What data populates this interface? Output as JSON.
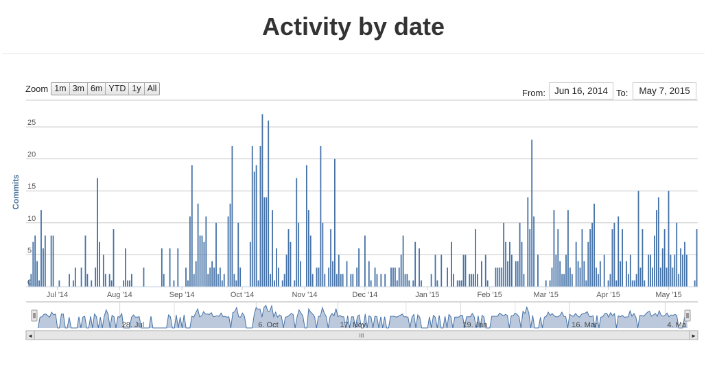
{
  "page": {
    "title": "Activity by date"
  },
  "zoom": {
    "label": "Zoom",
    "buttons": [
      "1m",
      "3m",
      "6m",
      "YTD",
      "1y",
      "All"
    ]
  },
  "range": {
    "from_label": "From:",
    "from_value": "Jun 16, 2014",
    "to_label": "To:",
    "to_value": "May 7, 2015"
  },
  "chart_data": {
    "type": "bar",
    "ylabel": "Commits",
    "ylim": [
      0,
      27
    ],
    "y_ticks": [
      "0",
      "5",
      "10",
      "15",
      "20",
      "25"
    ],
    "y_tick_values": [
      0,
      5,
      10,
      15,
      20,
      25
    ],
    "x_range": [
      "2014-06-16",
      "2015-05-07"
    ],
    "x_tick_labels": [
      "Jul '14",
      "Aug '14",
      "Sep '14",
      "Oct '14",
      "Nov '14",
      "Dec '14",
      "Jan '15",
      "Feb '15",
      "Mar '15",
      "Apr '15",
      "May '15"
    ],
    "x_tick_dates": [
      "2014-07-01",
      "2014-08-01",
      "2014-09-01",
      "2014-10-01",
      "2014-11-01",
      "2014-12-01",
      "2015-01-01",
      "2015-02-01",
      "2015-03-01",
      "2015-04-01",
      "2015-05-01"
    ],
    "grid": true,
    "color": "#4572a7",
    "series": [
      {
        "values": [
          [
            "2014-06-17",
            1
          ],
          [
            "2014-06-18",
            2
          ],
          [
            "2014-06-19",
            7
          ],
          [
            "2014-06-20",
            8
          ],
          [
            "2014-06-21",
            4
          ],
          [
            "2014-06-22",
            1
          ],
          [
            "2014-06-23",
            12
          ],
          [
            "2014-06-24",
            6
          ],
          [
            "2014-06-25",
            8
          ],
          [
            "2014-06-28",
            8
          ],
          [
            "2014-06-29",
            8
          ],
          [
            "2014-07-02",
            1
          ],
          [
            "2014-07-07",
            2
          ],
          [
            "2014-07-09",
            1
          ],
          [
            "2014-07-10",
            3
          ],
          [
            "2014-07-13",
            3
          ],
          [
            "2014-07-15",
            8
          ],
          [
            "2014-07-16",
            2
          ],
          [
            "2014-07-18",
            1
          ],
          [
            "2014-07-20",
            3
          ],
          [
            "2014-07-21",
            17
          ],
          [
            "2014-07-22",
            7
          ],
          [
            "2014-07-24",
            5
          ],
          [
            "2014-07-25",
            2
          ],
          [
            "2014-07-27",
            2
          ],
          [
            "2014-07-28",
            1
          ],
          [
            "2014-07-29",
            9
          ],
          [
            "2014-08-03",
            1
          ],
          [
            "2014-08-04",
            6
          ],
          [
            "2014-08-05",
            1
          ],
          [
            "2014-08-06",
            1
          ],
          [
            "2014-08-07",
            2
          ],
          [
            "2014-08-13",
            3
          ],
          [
            "2014-08-22",
            6
          ],
          [
            "2014-08-23",
            2
          ],
          [
            "2014-08-26",
            6
          ],
          [
            "2014-08-28",
            1
          ],
          [
            "2014-08-30",
            6
          ],
          [
            "2014-09-03",
            3
          ],
          [
            "2014-09-04",
            1
          ],
          [
            "2014-09-05",
            11
          ],
          [
            "2014-09-06",
            19
          ],
          [
            "2014-09-07",
            2
          ],
          [
            "2014-09-08",
            4
          ],
          [
            "2014-09-09",
            13
          ],
          [
            "2014-09-10",
            8
          ],
          [
            "2014-09-11",
            8
          ],
          [
            "2014-09-12",
            7
          ],
          [
            "2014-09-13",
            11
          ],
          [
            "2014-09-14",
            2
          ],
          [
            "2014-09-15",
            3
          ],
          [
            "2014-09-16",
            4
          ],
          [
            "2014-09-17",
            3
          ],
          [
            "2014-09-18",
            10
          ],
          [
            "2014-09-19",
            2
          ],
          [
            "2014-09-20",
            3
          ],
          [
            "2014-09-21",
            1
          ],
          [
            "2014-09-22",
            2
          ],
          [
            "2014-09-24",
            11
          ],
          [
            "2014-09-25",
            13
          ],
          [
            "2014-09-26",
            22
          ],
          [
            "2014-09-27",
            2
          ],
          [
            "2014-09-28",
            1
          ],
          [
            "2014-09-29",
            10
          ],
          [
            "2014-09-30",
            3
          ],
          [
            "2014-10-05",
            7
          ],
          [
            "2014-10-06",
            22
          ],
          [
            "2014-10-07",
            18
          ],
          [
            "2014-10-08",
            19
          ],
          [
            "2014-10-09",
            1
          ],
          [
            "2014-10-10",
            22
          ],
          [
            "2014-10-11",
            27
          ],
          [
            "2014-10-12",
            14
          ],
          [
            "2014-10-13",
            14
          ],
          [
            "2014-10-14",
            26
          ],
          [
            "2014-10-15",
            2
          ],
          [
            "2014-10-16",
            12
          ],
          [
            "2014-10-17",
            1
          ],
          [
            "2014-10-18",
            6
          ],
          [
            "2014-10-19",
            3
          ],
          [
            "2014-10-21",
            1
          ],
          [
            "2014-10-22",
            2
          ],
          [
            "2014-10-23",
            5
          ],
          [
            "2014-10-24",
            9
          ],
          [
            "2014-10-25",
            7
          ],
          [
            "2014-10-27",
            1
          ],
          [
            "2014-10-28",
            17
          ],
          [
            "2014-10-29",
            10
          ],
          [
            "2014-10-30",
            4
          ],
          [
            "2014-11-02",
            19
          ],
          [
            "2014-11-03",
            12
          ],
          [
            "2014-11-04",
            8
          ],
          [
            "2014-11-05",
            2
          ],
          [
            "2014-11-07",
            3
          ],
          [
            "2014-11-08",
            3
          ],
          [
            "2014-11-09",
            22
          ],
          [
            "2014-11-10",
            10
          ],
          [
            "2014-11-11",
            2
          ],
          [
            "2014-11-13",
            3
          ],
          [
            "2014-11-14",
            9
          ],
          [
            "2014-11-15",
            4
          ],
          [
            "2014-11-16",
            20
          ],
          [
            "2014-11-17",
            2
          ],
          [
            "2014-11-18",
            5
          ],
          [
            "2014-11-19",
            2
          ],
          [
            "2014-11-20",
            2
          ],
          [
            "2014-11-22",
            4
          ],
          [
            "2014-11-24",
            2
          ],
          [
            "2014-11-25",
            2
          ],
          [
            "2014-11-27",
            3
          ],
          [
            "2014-11-28",
            6
          ],
          [
            "2014-12-01",
            8
          ],
          [
            "2014-12-03",
            4
          ],
          [
            "2014-12-04",
            1
          ],
          [
            "2014-12-06",
            3
          ],
          [
            "2014-12-07",
            2
          ],
          [
            "2014-12-09",
            2
          ],
          [
            "2014-12-11",
            2
          ],
          [
            "2014-12-14",
            3
          ],
          [
            "2014-12-15",
            3
          ],
          [
            "2014-12-16",
            3
          ],
          [
            "2014-12-17",
            1
          ],
          [
            "2014-12-18",
            3
          ],
          [
            "2014-12-19",
            5
          ],
          [
            "2014-12-20",
            8
          ],
          [
            "2014-12-21",
            2
          ],
          [
            "2014-12-22",
            2
          ],
          [
            "2014-12-23",
            1
          ],
          [
            "2014-12-25",
            1
          ],
          [
            "2014-12-26",
            7
          ],
          [
            "2014-12-28",
            6
          ],
          [
            "2014-12-29",
            1
          ],
          [
            "2015-01-03",
            2
          ],
          [
            "2015-01-05",
            5
          ],
          [
            "2015-01-06",
            1
          ],
          [
            "2015-01-08",
            5
          ],
          [
            "2015-01-11",
            3
          ],
          [
            "2015-01-13",
            7
          ],
          [
            "2015-01-14",
            2
          ],
          [
            "2015-01-16",
            1
          ],
          [
            "2015-01-17",
            1
          ],
          [
            "2015-01-18",
            1
          ],
          [
            "2015-01-19",
            5
          ],
          [
            "2015-01-20",
            5
          ],
          [
            "2015-01-22",
            2
          ],
          [
            "2015-01-23",
            2
          ],
          [
            "2015-01-24",
            2
          ],
          [
            "2015-01-25",
            9
          ],
          [
            "2015-01-26",
            2
          ],
          [
            "2015-01-28",
            4
          ],
          [
            "2015-01-30",
            5
          ],
          [
            "2015-01-31",
            1
          ],
          [
            "2015-02-04",
            3
          ],
          [
            "2015-02-05",
            3
          ],
          [
            "2015-02-06",
            3
          ],
          [
            "2015-02-07",
            3
          ],
          [
            "2015-02-08",
            10
          ],
          [
            "2015-02-09",
            7
          ],
          [
            "2015-02-10",
            4
          ],
          [
            "2015-02-11",
            7
          ],
          [
            "2015-02-12",
            5
          ],
          [
            "2015-02-14",
            4
          ],
          [
            "2015-02-15",
            4
          ],
          [
            "2015-02-16",
            10
          ],
          [
            "2015-02-17",
            7
          ],
          [
            "2015-02-18",
            2
          ],
          [
            "2015-02-20",
            14
          ],
          [
            "2015-02-21",
            9
          ],
          [
            "2015-02-22",
            23
          ],
          [
            "2015-02-23",
            11
          ],
          [
            "2015-02-25",
            5
          ],
          [
            "2015-03-01",
            1
          ],
          [
            "2015-03-03",
            1
          ],
          [
            "2015-03-04",
            3
          ],
          [
            "2015-03-05",
            12
          ],
          [
            "2015-03-06",
            5
          ],
          [
            "2015-03-07",
            9
          ],
          [
            "2015-03-08",
            4
          ],
          [
            "2015-03-09",
            2
          ],
          [
            "2015-03-10",
            2
          ],
          [
            "2015-03-11",
            5
          ],
          [
            "2015-03-12",
            12
          ],
          [
            "2015-03-13",
            3
          ],
          [
            "2015-03-14",
            2
          ],
          [
            "2015-03-16",
            7
          ],
          [
            "2015-03-17",
            4
          ],
          [
            "2015-03-18",
            3
          ],
          [
            "2015-03-19",
            9
          ],
          [
            "2015-03-20",
            4
          ],
          [
            "2015-03-21",
            1
          ],
          [
            "2015-03-22",
            7
          ],
          [
            "2015-03-23",
            9
          ],
          [
            "2015-03-24",
            10
          ],
          [
            "2015-03-25",
            13
          ],
          [
            "2015-03-26",
            3
          ],
          [
            "2015-03-27",
            2
          ],
          [
            "2015-03-28",
            4
          ],
          [
            "2015-03-30",
            5
          ],
          [
            "2015-04-01",
            1
          ],
          [
            "2015-04-02",
            2
          ],
          [
            "2015-04-03",
            9
          ],
          [
            "2015-04-04",
            10
          ],
          [
            "2015-04-05",
            1
          ],
          [
            "2015-04-06",
            11
          ],
          [
            "2015-04-07",
            4
          ],
          [
            "2015-04-08",
            9
          ],
          [
            "2015-04-10",
            4
          ],
          [
            "2015-04-11",
            2
          ],
          [
            "2015-04-12",
            5
          ],
          [
            "2015-04-13",
            1
          ],
          [
            "2015-04-14",
            1
          ],
          [
            "2015-04-15",
            2
          ],
          [
            "2015-04-16",
            15
          ],
          [
            "2015-04-17",
            3
          ],
          [
            "2015-04-18",
            9
          ],
          [
            "2015-04-19",
            1
          ],
          [
            "2015-04-21",
            5
          ],
          [
            "2015-04-22",
            5
          ],
          [
            "2015-04-23",
            3
          ],
          [
            "2015-04-24",
            8
          ],
          [
            "2015-04-25",
            12
          ],
          [
            "2015-04-26",
            14
          ],
          [
            "2015-04-27",
            3
          ],
          [
            "2015-04-28",
            6
          ],
          [
            "2015-04-29",
            9
          ],
          [
            "2015-04-30",
            3
          ],
          [
            "2015-05-01",
            15
          ],
          [
            "2015-05-02",
            5
          ],
          [
            "2015-05-03",
            3
          ],
          [
            "2015-05-04",
            5
          ],
          [
            "2015-05-05",
            10
          ],
          [
            "2015-05-06",
            2
          ],
          [
            "2015-05-07",
            6
          ],
          [
            "2015-05-08",
            5
          ],
          [
            "2015-05-09",
            7
          ],
          [
            "2015-05-10",
            5
          ],
          [
            "2015-05-14",
            1
          ],
          [
            "2015-05-15",
            9
          ]
        ]
      }
    ]
  },
  "navigator": {
    "x_tick_labels": [
      "28. Jul",
      "6. Oct",
      "17. Nov",
      "19. Jan",
      "16. Mar",
      "4. Ma"
    ]
  },
  "scrollbar": {
    "left_arrow": "◂",
    "right_arrow": "▸",
    "thumb_grip": "III"
  }
}
